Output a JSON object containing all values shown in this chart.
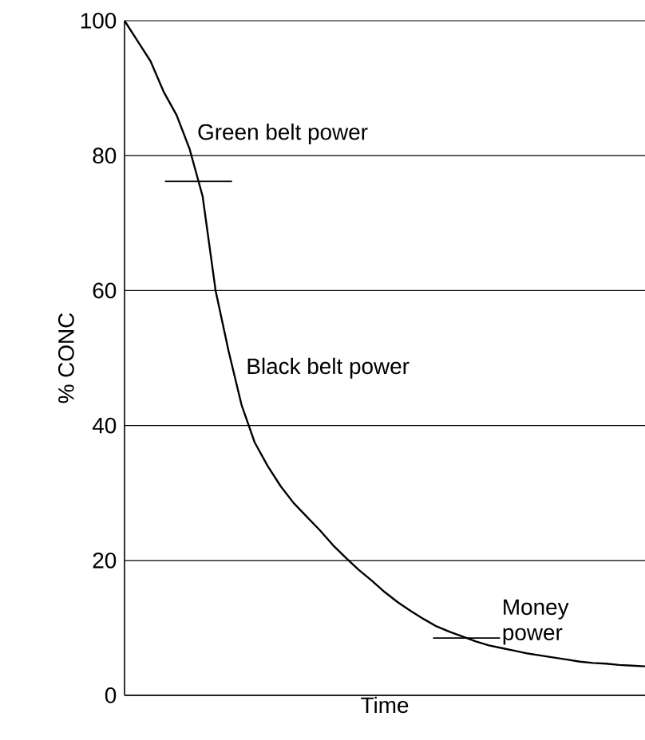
{
  "chart_data": {
    "type": "line",
    "xlabel": "Time",
    "ylabel": "% CONC",
    "categories": [
      null,
      null,
      null,
      null,
      null,
      null,
      null,
      null,
      null,
      null,
      null,
      null,
      null,
      null,
      null,
      null,
      null,
      null,
      null,
      null,
      null,
      null,
      null,
      null,
      null,
      null,
      null,
      null,
      null,
      null,
      null,
      null,
      null,
      null,
      null,
      null,
      null,
      null,
      null,
      null,
      null
    ],
    "series": [
      {
        "color": "#000000",
        "values": [
          100,
          97,
          94,
          89.5,
          86,
          81,
          74,
          60,
          51,
          43,
          37.5,
          34,
          31,
          28.5,
          26.5,
          24.5,
          22.3,
          20.4,
          18.6,
          17,
          15.3,
          13.8,
          12.5,
          11.3,
          10.2,
          9.4,
          8.7,
          8,
          7.4,
          7,
          6.6,
          6.2,
          5.9,
          5.6,
          5.3,
          5,
          4.8,
          4.7,
          4.5,
          4.4,
          4.3
        ]
      }
    ],
    "ylim": [
      0,
      100
    ],
    "yticks": [
      0,
      20,
      40,
      60,
      80,
      100
    ],
    "tick_labels": "y",
    "grid": "y",
    "marker": "none",
    "line_style": "solid",
    "annotations": [
      "Black belt power"
    ],
    "ref_lines": [
      {
        "axis": "y",
        "value": 76.2,
        "label": "Green belt power"
      },
      {
        "axis": "y",
        "value": 8.5,
        "label": "Money power"
      }
    ]
  }
}
